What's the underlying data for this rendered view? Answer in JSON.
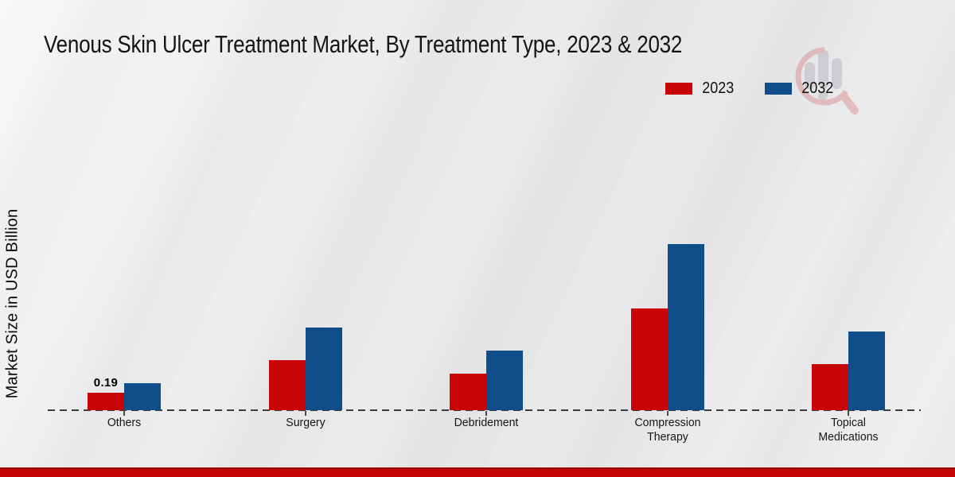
{
  "title": "Venous Skin Ulcer Treatment Market, By Treatment Type, 2023 & 2032",
  "y_axis_label": "Market Size in USD Billion",
  "legend": {
    "position": "top-right",
    "items": [
      {
        "label": "2023",
        "color": "#c80404"
      },
      {
        "label": "2032",
        "color": "#0f4e8b"
      }
    ]
  },
  "annotation": {
    "text": "0.19",
    "category": "Others",
    "series": "2023"
  },
  "watermark_icon": "bar-chart-magnifier-logo",
  "footer": {
    "bar_color": "#c20404"
  },
  "chart_data": {
    "type": "bar",
    "title": "Venous Skin Ulcer Treatment Market, By Treatment Type, 2023 & 2032",
    "categories": [
      "Others",
      "Surgery",
      "Debridement",
      "Compression Therapy",
      "Topical Medications"
    ],
    "series": [
      {
        "name": "2023",
        "color": "#c80404",
        "values": [
          0.19,
          0.54,
          0.4,
          1.1,
          0.5
        ]
      },
      {
        "name": "2032",
        "color": "#0f4e8b",
        "values": [
          0.29,
          0.9,
          0.65,
          1.8,
          0.85
        ]
      }
    ],
    "xlabel": "",
    "ylabel": "Market Size in USD Billion",
    "ylim": [
      0,
      2.0
    ],
    "grid": false,
    "y_axis_ticks_visible": false,
    "data_labels": [
      {
        "category": "Others",
        "series": "2023",
        "text": "0.19"
      }
    ],
    "legend_position": "top-right"
  }
}
